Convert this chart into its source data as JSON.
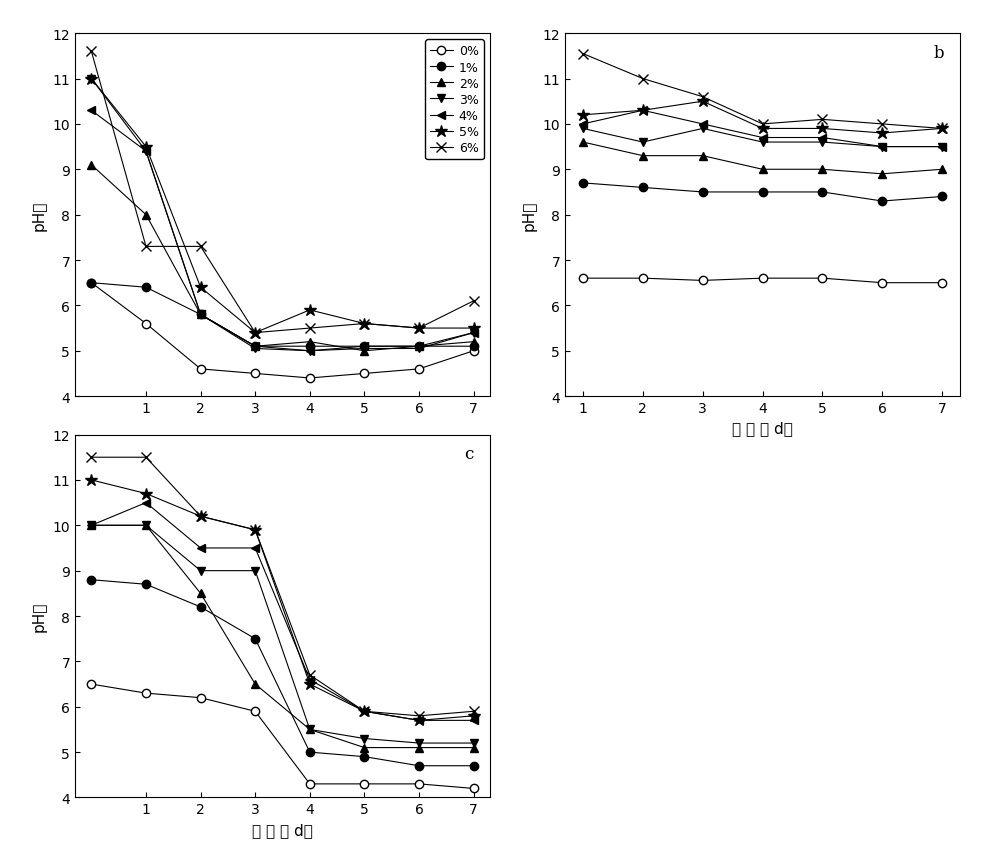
{
  "xlabel": "时 间 （ d）",
  "ylabel": "pH値",
  "legend_labels": [
    "0%",
    "1%",
    "2%",
    "3%",
    "4%",
    "5%",
    "6%"
  ],
  "a": {
    "x": [
      0,
      1,
      2,
      3,
      4,
      5,
      6,
      7
    ],
    "series": {
      "0%": [
        6.5,
        5.6,
        4.6,
        4.5,
        4.4,
        4.5,
        4.6,
        5.0
      ],
      "1%": [
        6.5,
        6.4,
        5.8,
        5.1,
        5.1,
        5.1,
        5.1,
        5.1
      ],
      "2%": [
        9.1,
        8.0,
        5.8,
        5.1,
        5.2,
        5.0,
        5.1,
        5.2
      ],
      "3%": [
        11.0,
        9.4,
        5.8,
        5.05,
        5.0,
        5.05,
        5.05,
        5.4
      ],
      "4%": [
        10.3,
        9.4,
        5.8,
        5.1,
        5.0,
        5.1,
        5.1,
        5.4
      ],
      "5%": [
        11.0,
        9.5,
        6.4,
        5.4,
        5.9,
        5.6,
        5.5,
        5.5
      ],
      "6%": [
        11.6,
        7.3,
        7.3,
        5.4,
        5.5,
        5.6,
        5.5,
        6.1
      ]
    }
  },
  "b": {
    "x": [
      1,
      2,
      3,
      4,
      5,
      6,
      7
    ],
    "series": {
      "0%": [
        6.6,
        6.6,
        6.55,
        6.6,
        6.6,
        6.5,
        6.5
      ],
      "1%": [
        8.7,
        8.6,
        8.5,
        8.5,
        8.5,
        8.3,
        8.4
      ],
      "2%": [
        9.6,
        9.3,
        9.3,
        9.0,
        9.0,
        8.9,
        9.0
      ],
      "3%": [
        9.9,
        9.6,
        9.9,
        9.6,
        9.6,
        9.5,
        9.5
      ],
      "4%": [
        10.0,
        10.3,
        10.0,
        9.7,
        9.7,
        9.5,
        9.5
      ],
      "5%": [
        10.2,
        10.3,
        10.5,
        9.9,
        9.9,
        9.8,
        9.9
      ],
      "6%": [
        11.55,
        11.0,
        10.6,
        10.0,
        10.1,
        10.0,
        9.9
      ]
    }
  },
  "c": {
    "x": [
      0,
      1,
      2,
      3,
      4,
      5,
      6,
      7
    ],
    "series": {
      "0%": [
        6.5,
        6.3,
        6.2,
        5.9,
        4.3,
        4.3,
        4.3,
        4.2
      ],
      "1%": [
        8.8,
        8.7,
        8.2,
        7.5,
        5.0,
        4.9,
        4.7,
        4.7
      ],
      "2%": [
        10.0,
        10.0,
        8.5,
        6.5,
        5.5,
        5.1,
        5.1,
        5.1
      ],
      "3%": [
        10.0,
        10.0,
        9.0,
        9.0,
        5.5,
        5.3,
        5.2,
        5.2
      ],
      "4%": [
        10.0,
        10.5,
        9.5,
        9.5,
        6.6,
        5.9,
        5.7,
        5.7
      ],
      "5%": [
        11.0,
        10.7,
        10.2,
        9.9,
        6.5,
        5.9,
        5.7,
        5.8
      ],
      "6%": [
        11.5,
        11.5,
        10.2,
        9.9,
        6.7,
        5.9,
        5.8,
        5.9
      ]
    }
  },
  "ylim": [
    4,
    12
  ],
  "yticks": [
    4,
    5,
    6,
    7,
    8,
    9,
    10,
    11,
    12
  ],
  "marker_styles": {
    "0%": {
      "marker": "o",
      "mfc": "white",
      "mec": "black",
      "ms": 6
    },
    "1%": {
      "marker": "o",
      "mfc": "black",
      "mec": "black",
      "ms": 6
    },
    "2%": {
      "marker": "^",
      "mfc": "black",
      "mec": "black",
      "ms": 6
    },
    "3%": {
      "marker": "v",
      "mfc": "black",
      "mec": "black",
      "ms": 6
    },
    "4%": {
      "marker": "<",
      "mfc": "black",
      "mec": "black",
      "ms": 6
    },
    "5%": {
      "marker": "*",
      "mfc": "black",
      "mec": "black",
      "ms": 9
    },
    "6%": {
      "marker": "x",
      "mfc": "black",
      "mec": "black",
      "ms": 7
    }
  },
  "linestyle": "-",
  "linewidth": 0.8,
  "tick_labelsize": 10,
  "ylabel_fontsize": 11,
  "xlabel_fontsize": 11,
  "legend_fontsize": 9,
  "panel_label_fontsize": 12
}
